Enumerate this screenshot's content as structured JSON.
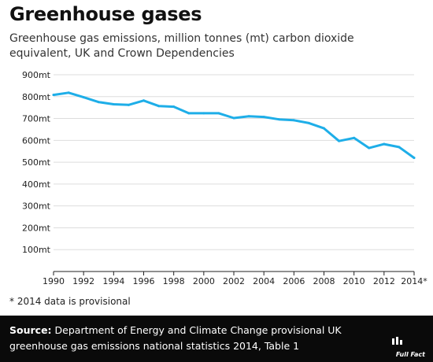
{
  "header": {
    "title": "Greenhouse gases",
    "subtitle": "Greenhouse gas emissions, million tonnes (mt) carbon dioxide equivalent, UK and Crown Dependencies"
  },
  "footnote": "* 2014 data is provisional",
  "footer": {
    "source_label": "Source:",
    "source_text": "Department of Energy and Climate Change provisional UK greenhouse gas emissions national statistics 2014, Table 1",
    "brand": "Full Fact"
  },
  "colors": {
    "line": "#1eaee8",
    "grid": "#dddddd",
    "axis": "#222222",
    "footer_bg": "#0a0a0a"
  },
  "chart_data": {
    "type": "line",
    "x": [
      1990,
      1991,
      1992,
      1993,
      1994,
      1995,
      1996,
      1997,
      1998,
      1999,
      2000,
      2001,
      2002,
      2003,
      2004,
      2005,
      2006,
      2007,
      2008,
      2009,
      2010,
      2011,
      2012,
      2013,
      2014
    ],
    "series": [
      {
        "values": [
          808,
          818,
          797,
          775,
          765,
          762,
          782,
          757,
          754,
          724,
          724,
          724,
          702,
          710,
          707,
          696,
          692,
          679,
          655,
          597,
          611,
          565,
          583,
          569,
          520
        ]
      }
    ],
    "xticks": [
      1990,
      1992,
      1994,
      1996,
      1998,
      2000,
      2002,
      2004,
      2006,
      2008,
      2010,
      2012,
      2014
    ],
    "xtick_labels": [
      "1990",
      "1992",
      "1994",
      "1996",
      "1998",
      "2000",
      "2002",
      "2004",
      "2006",
      "2008",
      "2010",
      "2012",
      "2014*"
    ],
    "yticks": [
      0,
      100,
      200,
      300,
      400,
      500,
      600,
      700,
      800,
      900
    ],
    "ytick_labels": [
      "",
      "100mt",
      "200mt",
      "300mt",
      "400mt",
      "500mt",
      "600mt",
      "700mt",
      "800mt",
      "900mt"
    ],
    "xlim": [
      1990,
      2014
    ],
    "ylim": [
      0,
      900
    ],
    "grid": "horizontal"
  }
}
